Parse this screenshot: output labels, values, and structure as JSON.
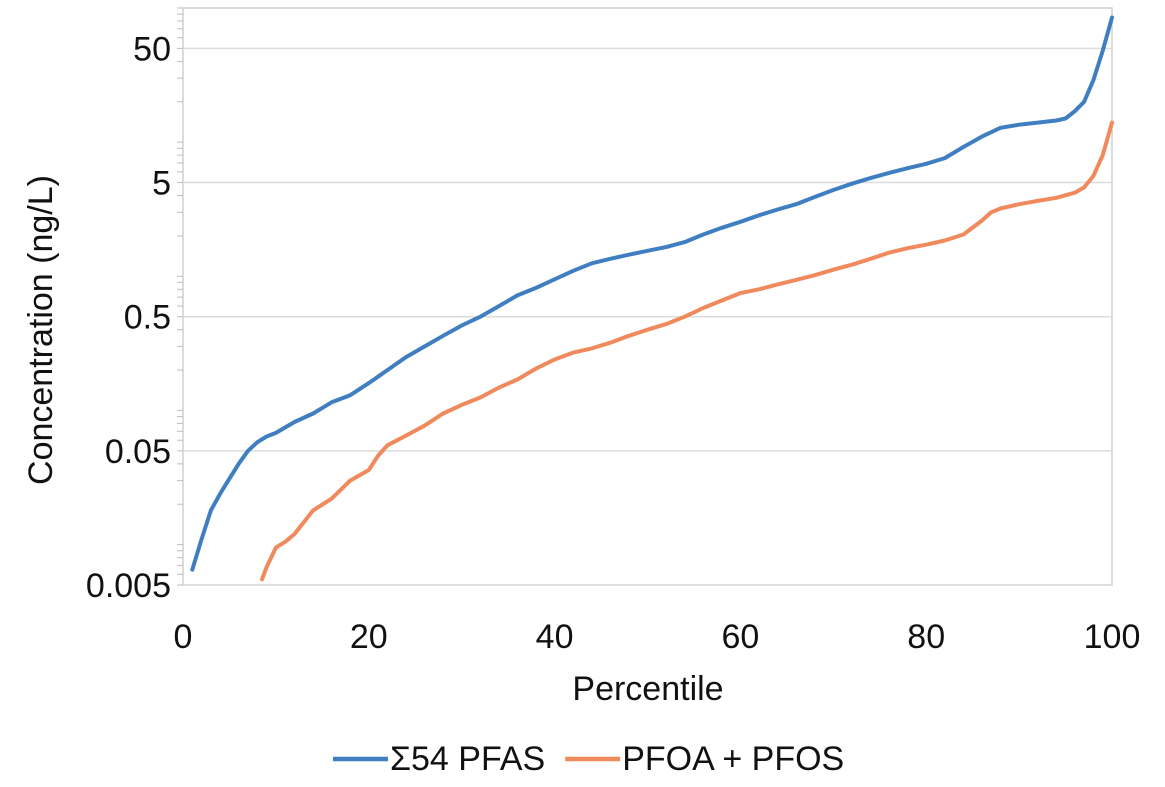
{
  "chart_data": {
    "type": "line",
    "xlabel": "Percentile",
    "ylabel": "Concentration (ng/L)",
    "xlim": [
      0,
      100
    ],
    "ylim": [
      0.005,
      100
    ],
    "yscale": "log",
    "x_ticks": [
      0,
      20,
      40,
      60,
      80,
      100
    ],
    "y_ticks": [
      {
        "value": 0.005,
        "label": "0.005"
      },
      {
        "value": 0.05,
        "label": "0.05"
      },
      {
        "value": 0.5,
        "label": "0.5"
      },
      {
        "value": 5,
        "label": "5"
      },
      {
        "value": 50,
        "label": "50"
      }
    ],
    "grid": "horizontal",
    "legend_position": "bottom",
    "series": [
      {
        "name": "Σ54 PFAS",
        "color": "#3f7fc1",
        "points": [
          [
            1,
            0.0065
          ],
          [
            2,
            0.011
          ],
          [
            3,
            0.018
          ],
          [
            4,
            0.024
          ],
          [
            5,
            0.031
          ],
          [
            6,
            0.04
          ],
          [
            7,
            0.05
          ],
          [
            8,
            0.058
          ],
          [
            9,
            0.064
          ],
          [
            10,
            0.068
          ],
          [
            12,
            0.082
          ],
          [
            14,
            0.095
          ],
          [
            16,
            0.115
          ],
          [
            18,
            0.13
          ],
          [
            20,
            0.16
          ],
          [
            22,
            0.2
          ],
          [
            24,
            0.25
          ],
          [
            26,
            0.3
          ],
          [
            28,
            0.36
          ],
          [
            30,
            0.43
          ],
          [
            32,
            0.5
          ],
          [
            34,
            0.6
          ],
          [
            36,
            0.72
          ],
          [
            38,
            0.82
          ],
          [
            40,
            0.95
          ],
          [
            42,
            1.1
          ],
          [
            44,
            1.25
          ],
          [
            46,
            1.35
          ],
          [
            48,
            1.45
          ],
          [
            50,
            1.55
          ],
          [
            52,
            1.65
          ],
          [
            54,
            1.8
          ],
          [
            56,
            2.05
          ],
          [
            58,
            2.3
          ],
          [
            60,
            2.55
          ],
          [
            62,
            2.85
          ],
          [
            64,
            3.15
          ],
          [
            66,
            3.45
          ],
          [
            68,
            3.9
          ],
          [
            70,
            4.4
          ],
          [
            72,
            4.9
          ],
          [
            74,
            5.4
          ],
          [
            76,
            5.9
          ],
          [
            78,
            6.4
          ],
          [
            80,
            6.9
          ],
          [
            82,
            7.6
          ],
          [
            84,
            9.2
          ],
          [
            86,
            11
          ],
          [
            88,
            12.8
          ],
          [
            90,
            13.5
          ],
          [
            92,
            14
          ],
          [
            94,
            14.5
          ],
          [
            95,
            15
          ],
          [
            96,
            17
          ],
          [
            97,
            20
          ],
          [
            98,
            29
          ],
          [
            99,
            48
          ],
          [
            100,
            85
          ]
        ]
      },
      {
        "name": "PFOA + PFOS",
        "color": "#f08a5d",
        "points": [
          [
            8.5,
            0.0055
          ],
          [
            9,
            0.0068
          ],
          [
            10,
            0.0095
          ],
          [
            11,
            0.0105
          ],
          [
            12,
            0.012
          ],
          [
            14,
            0.018
          ],
          [
            16,
            0.022
          ],
          [
            18,
            0.03
          ],
          [
            20,
            0.036
          ],
          [
            21,
            0.046
          ],
          [
            22,
            0.055
          ],
          [
            24,
            0.065
          ],
          [
            26,
            0.077
          ],
          [
            28,
            0.095
          ],
          [
            30,
            0.11
          ],
          [
            32,
            0.125
          ],
          [
            34,
            0.148
          ],
          [
            36,
            0.17
          ],
          [
            38,
            0.205
          ],
          [
            40,
            0.24
          ],
          [
            42,
            0.27
          ],
          [
            44,
            0.29
          ],
          [
            46,
            0.32
          ],
          [
            48,
            0.36
          ],
          [
            50,
            0.4
          ],
          [
            52,
            0.44
          ],
          [
            54,
            0.5
          ],
          [
            56,
            0.58
          ],
          [
            58,
            0.66
          ],
          [
            60,
            0.75
          ],
          [
            62,
            0.8
          ],
          [
            64,
            0.87
          ],
          [
            66,
            0.94
          ],
          [
            68,
            1.02
          ],
          [
            70,
            1.12
          ],
          [
            72,
            1.22
          ],
          [
            74,
            1.35
          ],
          [
            76,
            1.5
          ],
          [
            78,
            1.62
          ],
          [
            80,
            1.72
          ],
          [
            82,
            1.85
          ],
          [
            84,
            2.05
          ],
          [
            86,
            2.6
          ],
          [
            87,
            3.0
          ],
          [
            88,
            3.2
          ],
          [
            90,
            3.45
          ],
          [
            92,
            3.65
          ],
          [
            94,
            3.85
          ],
          [
            96,
            4.2
          ],
          [
            97,
            4.6
          ],
          [
            98,
            5.6
          ],
          [
            99,
            8
          ],
          [
            100,
            14
          ]
        ]
      }
    ]
  }
}
